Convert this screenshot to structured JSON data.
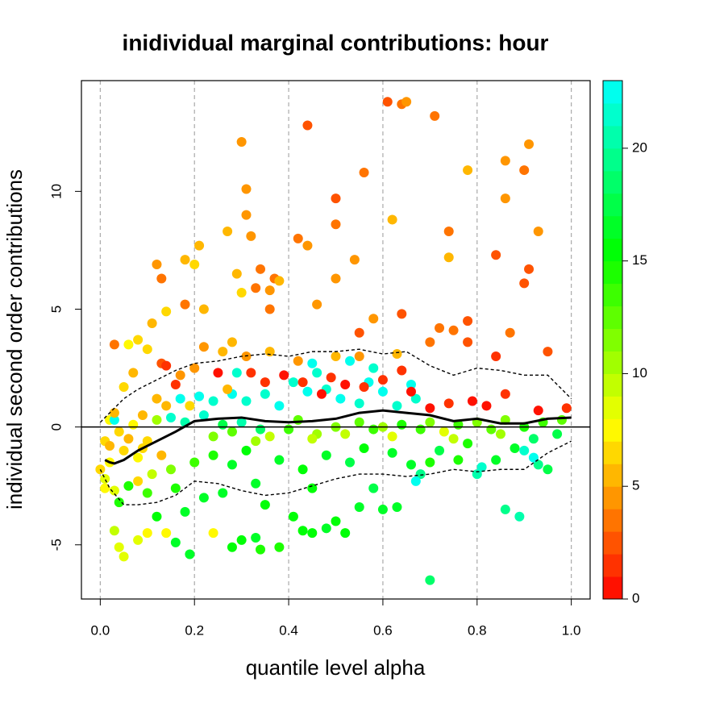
{
  "chart_data": {
    "type": "scatter",
    "title": "inidividual marginal contributions: hour",
    "x_label": "quantile level alpha",
    "y_label": "individual second order contributions",
    "xlim": [
      -0.04,
      1.04
    ],
    "ylim": [
      -7.3,
      14.7
    ],
    "xticks": [
      {
        "value": 0,
        "label": "0.0"
      },
      0.2,
      0.4,
      0.6,
      0.8,
      {
        "value": 1,
        "label": "1.0"
      }
    ],
    "yticks": [
      -5,
      0,
      5,
      10
    ],
    "grid": true,
    "reference_line": 0,
    "hue_range": [
      0,
      180
    ],
    "colorbar": {
      "zlim": [
        0,
        23
      ],
      "ticks": [
        0,
        5,
        10,
        15,
        20
      ]
    },
    "points": [
      [
        0.64,
        13.7,
        3
      ],
      [
        0.65,
        13.8,
        4
      ],
      [
        0.61,
        13.8,
        2
      ],
      [
        0.44,
        12.8,
        2
      ],
      [
        0.71,
        13.2,
        3
      ],
      [
        0.3,
        12.1,
        4
      ],
      [
        0.91,
        12.0,
        4
      ],
      [
        0.78,
        10.9,
        5
      ],
      [
        0.86,
        11.3,
        4
      ],
      [
        0.9,
        10.9,
        3
      ],
      [
        0.31,
        10.1,
        4
      ],
      [
        0.56,
        10.8,
        3
      ],
      [
        0.5,
        9.7,
        2
      ],
      [
        0.86,
        9.7,
        4
      ],
      [
        0.31,
        9.0,
        4
      ],
      [
        0.62,
        8.8,
        5
      ],
      [
        0.5,
        8.6,
        3
      ],
      [
        0.27,
        8.3,
        5
      ],
      [
        0.32,
        8.1,
        4
      ],
      [
        0.93,
        8.3,
        4
      ],
      [
        0.42,
        8.0,
        3
      ],
      [
        0.74,
        8.3,
        3
      ],
      [
        0.44,
        7.7,
        4
      ],
      [
        0.21,
        7.7,
        5
      ],
      [
        0.18,
        7.1,
        5
      ],
      [
        0.84,
        7.3,
        2
      ],
      [
        0.54,
        7.1,
        4
      ],
      [
        0.2,
        6.9,
        6
      ],
      [
        0.12,
        6.9,
        4
      ],
      [
        0.74,
        7.2,
        5
      ],
      [
        0.91,
        6.7,
        2
      ],
      [
        0.13,
        6.3,
        3
      ],
      [
        0.29,
        6.5,
        5
      ],
      [
        0.34,
        6.7,
        3
      ],
      [
        0.37,
        6.3,
        3
      ],
      [
        0.5,
        6.3,
        4
      ],
      [
        0.9,
        6.1,
        2
      ],
      [
        0.38,
        6.2,
        5
      ],
      [
        0.36,
        5.8,
        4
      ],
      [
        0.33,
        5.9,
        3
      ],
      [
        0.3,
        5.7,
        6
      ],
      [
        0.18,
        5.2,
        3
      ],
      [
        0.22,
        5.0,
        5
      ],
      [
        0.36,
        5.0,
        3
      ],
      [
        0.46,
        5.2,
        4
      ],
      [
        0.64,
        4.8,
        2
      ],
      [
        0.75,
        4.1,
        3
      ],
      [
        0.78,
        4.5,
        2
      ],
      [
        0.72,
        4.2,
        3
      ],
      [
        0.58,
        4.6,
        4
      ],
      [
        0.87,
        4.0,
        3
      ],
      [
        0.78,
        3.6,
        2
      ],
      [
        0.55,
        4.0,
        2
      ],
      [
        0.11,
        4.4,
        5
      ],
      [
        0.14,
        4.9,
        6
      ],
      [
        0.06,
        3.5,
        7
      ],
      [
        0.03,
        3.5,
        3
      ],
      [
        0.95,
        3.2,
        2
      ],
      [
        0.84,
        3.0,
        1
      ],
      [
        0.99,
        0.8,
        1
      ],
      [
        0.13,
        2.7,
        2
      ],
      [
        0.2,
        2.5,
        4
      ],
      [
        0.26,
        3.2,
        5
      ],
      [
        0.28,
        3.6,
        5
      ],
      [
        0.7,
        -6.5,
        18
      ],
      [
        0.19,
        -5.4,
        16
      ],
      [
        0.05,
        -5.5,
        8
      ],
      [
        0.04,
        -5.1,
        8
      ],
      [
        0.34,
        -5.2,
        14
      ],
      [
        0.38,
        -5.1,
        14
      ],
      [
        0.3,
        -4.8,
        15
      ],
      [
        0.28,
        -5.1,
        15
      ],
      [
        0.33,
        -4.7,
        16
      ],
      [
        0.16,
        -4.9,
        16
      ],
      [
        0.03,
        -4.4,
        9
      ],
      [
        0.08,
        -4.8,
        8
      ],
      [
        0.1,
        -4.5,
        7
      ],
      [
        0.43,
        -4.4,
        15
      ],
      [
        0.45,
        -4.5,
        15
      ],
      [
        0.48,
        -4.3,
        16
      ],
      [
        0.86,
        -3.5,
        19
      ],
      [
        0.89,
        -3.8,
        20
      ],
      [
        0.24,
        -4.5,
        7
      ],
      [
        0.14,
        -4.5,
        7
      ],
      [
        0.52,
        -4.5,
        15
      ],
      [
        0.5,
        -4.0,
        15
      ],
      [
        0.55,
        -3.4,
        16
      ],
      [
        0.6,
        -3.5,
        16
      ],
      [
        0.63,
        -3.4,
        16
      ],
      [
        0.41,
        -3.8,
        15
      ],
      [
        0.12,
        -3.8,
        15
      ],
      [
        0.18,
        -3.6,
        16
      ],
      [
        0.22,
        -3.0,
        16
      ],
      [
        0.35,
        -3.3,
        15
      ],
      [
        0.04,
        -3.2,
        14
      ],
      [
        0.06,
        -2.5,
        14
      ],
      [
        0.1,
        -2.8,
        13
      ],
      [
        0.16,
        -2.6,
        14
      ],
      [
        0.26,
        -2.8,
        16
      ],
      [
        0.33,
        -2.4,
        16
      ],
      [
        0.45,
        -2.6,
        15
      ],
      [
        0.58,
        -2.6,
        17
      ],
      [
        0.68,
        -2.0,
        19
      ],
      [
        0.7,
        -1.5,
        14
      ],
      [
        0.76,
        -1.4,
        14
      ],
      [
        0.8,
        -2.0,
        20
      ],
      [
        0.84,
        -1.4,
        16
      ],
      [
        0.93,
        -1.6,
        19
      ],
      [
        0.95,
        -1.8,
        17
      ],
      [
        0.01,
        -2.2,
        8
      ],
      [
        0.02,
        -1.5,
        7
      ],
      [
        0.01,
        -0.6,
        6
      ],
      [
        0.03,
        -2.7,
        8
      ],
      [
        0.05,
        -1.0,
        6
      ],
      [
        0.08,
        -1.3,
        7
      ],
      [
        0.09,
        -0.9,
        6
      ],
      [
        0.11,
        -2.0,
        9
      ],
      [
        0.15,
        -1.8,
        11
      ],
      [
        0.2,
        -1.5,
        13
      ],
      [
        0.24,
        -1.2,
        14
      ],
      [
        0.28,
        -1.6,
        16
      ],
      [
        0.31,
        -1.0,
        15
      ],
      [
        0.38,
        -1.4,
        16
      ],
      [
        0.43,
        -1.8,
        15
      ],
      [
        0.48,
        -1.2,
        16
      ],
      [
        0.53,
        -1.5,
        17
      ],
      [
        0.56,
        -0.9,
        15
      ],
      [
        0.62,
        -1.1,
        16
      ],
      [
        0.66,
        -1.6,
        16
      ],
      [
        0.72,
        -1.0,
        17
      ],
      [
        0.78,
        -0.7,
        14
      ],
      [
        0.88,
        -0.9,
        16
      ],
      [
        0.92,
        -0.5,
        18
      ],
      [
        0.97,
        -0.3,
        17
      ],
      [
        0.02,
        0.3,
        7
      ],
      [
        0.04,
        -0.2,
        6
      ],
      [
        0.07,
        0.1,
        7
      ],
      [
        0.12,
        0.3,
        10
      ],
      [
        0.15,
        0.4,
        21
      ],
      [
        0.18,
        0.2,
        20
      ],
      [
        0.22,
        0.5,
        21
      ],
      [
        0.26,
        0.1,
        17
      ],
      [
        0.3,
        0.2,
        20
      ],
      [
        0.34,
        -0.1,
        18
      ],
      [
        0.36,
        -0.4,
        9
      ],
      [
        0.4,
        -0.1,
        13
      ],
      [
        0.42,
        0.3,
        12
      ],
      [
        0.46,
        -0.3,
        10
      ],
      [
        0.5,
        0.0,
        11
      ],
      [
        0.52,
        -0.3,
        9
      ],
      [
        0.55,
        0.2,
        12
      ],
      [
        0.58,
        -0.1,
        13
      ],
      [
        0.6,
        0.0,
        10
      ],
      [
        0.64,
        0.1,
        14
      ],
      [
        0.68,
        -0.1,
        13
      ],
      [
        0.7,
        0.2,
        11
      ],
      [
        0.73,
        -0.2,
        8
      ],
      [
        0.76,
        0.1,
        13
      ],
      [
        0.8,
        0.2,
        11
      ],
      [
        0.83,
        -0.1,
        12
      ],
      [
        0.86,
        0.3,
        11
      ],
      [
        0.9,
        0.0,
        14
      ],
      [
        0.94,
        0.2,
        13
      ],
      [
        0.98,
        0.3,
        12
      ],
      [
        0.24,
        -0.4,
        11
      ],
      [
        0.28,
        -0.2,
        12
      ],
      [
        0.33,
        -0.6,
        10
      ],
      [
        0.45,
        -0.5,
        9
      ],
      [
        0.62,
        -0.4,
        8
      ],
      [
        0.75,
        -0.5,
        9
      ],
      [
        0.85,
        -0.3,
        10
      ],
      [
        0.21,
        1.3,
        22
      ],
      [
        0.24,
        1.1,
        21
      ],
      [
        0.28,
        1.4,
        22
      ],
      [
        0.31,
        1.1,
        21
      ],
      [
        0.35,
        1.4,
        21
      ],
      [
        0.38,
        0.9,
        22
      ],
      [
        0.41,
        1.9,
        21
      ],
      [
        0.44,
        1.5,
        22
      ],
      [
        0.45,
        2.7,
        22
      ],
      [
        0.48,
        1.6,
        21
      ],
      [
        0.51,
        1.2,
        22
      ],
      [
        0.55,
        1.0,
        21
      ],
      [
        0.57,
        1.9,
        22
      ],
      [
        0.6,
        1.5,
        22
      ],
      [
        0.63,
        0.9,
        21
      ],
      [
        0.67,
        1.2,
        21
      ],
      [
        0.29,
        2.3,
        21
      ],
      [
        0.46,
        2.3,
        21
      ],
      [
        0.53,
        2.8,
        22
      ],
      [
        0.58,
        2.5,
        21
      ],
      [
        0.66,
        1.8,
        22
      ],
      [
        0.17,
        1.2,
        22
      ],
      [
        0.03,
        0.3,
        22
      ],
      [
        0.9,
        -1.0,
        21
      ],
      [
        0.92,
        -1.3,
        22
      ],
      [
        0.67,
        -2.3,
        22
      ],
      [
        0.81,
        -1.7,
        21
      ],
      [
        0.25,
        2.3,
        0
      ],
      [
        0.32,
        2.3,
        1
      ],
      [
        0.35,
        1.9,
        1
      ],
      [
        0.39,
        2.2,
        0
      ],
      [
        0.43,
        1.9,
        1
      ],
      [
        0.47,
        1.4,
        0
      ],
      [
        0.49,
        2.1,
        1
      ],
      [
        0.52,
        1.8,
        0
      ],
      [
        0.56,
        1.7,
        1
      ],
      [
        0.6,
        2.0,
        1
      ],
      [
        0.64,
        2.4,
        1
      ],
      [
        0.66,
        1.5,
        0
      ],
      [
        0.7,
        0.8,
        0
      ],
      [
        0.74,
        1.0,
        1
      ],
      [
        0.79,
        1.1,
        0
      ],
      [
        0.82,
        0.9,
        0
      ],
      [
        0.86,
        1.4,
        1
      ],
      [
        0.93,
        0.7,
        0
      ],
      [
        0.16,
        1.8,
        1
      ],
      [
        0.14,
        2.6,
        1
      ],
      [
        0.0,
        -1.8,
        6
      ],
      [
        0.02,
        -0.8,
        5
      ],
      [
        0.03,
        0.6,
        5
      ],
      [
        0.05,
        1.7,
        6
      ],
      [
        0.07,
        2.3,
        5
      ],
      [
        0.09,
        0.5,
        5
      ],
      [
        0.1,
        -0.6,
        6
      ],
      [
        0.12,
        1.2,
        5
      ],
      [
        0.13,
        -1.2,
        5
      ],
      [
        0.06,
        -0.5,
        5
      ],
      [
        0.08,
        -2.3,
        6
      ],
      [
        0.01,
        -2.6,
        7
      ],
      [
        0.14,
        0.9,
        5
      ],
      [
        0.19,
        0.9,
        6
      ],
      [
        0.17,
        2.2,
        4
      ],
      [
        0.22,
        3.4,
        4
      ],
      [
        0.27,
        1.6,
        5
      ],
      [
        0.31,
        3.0,
        4
      ],
      [
        0.36,
        3.2,
        5
      ],
      [
        0.42,
        2.8,
        4
      ],
      [
        0.5,
        3.0,
        5
      ],
      [
        0.55,
        3.0,
        4
      ],
      [
        0.63,
        3.1,
        5
      ],
      [
        0.7,
        3.6,
        3
      ],
      [
        0.1,
        3.3,
        6
      ],
      [
        0.08,
        3.7,
        6
      ]
    ],
    "lines": [
      {
        "style": "solid",
        "color": "#000000",
        "x": [
          0.01,
          0.02,
          0.03,
          0.05,
          0.08,
          0.12,
          0.16,
          0.2,
          0.25,
          0.3,
          0.35,
          0.4,
          0.45,
          0.5,
          0.55,
          0.6,
          0.65,
          0.7,
          0.75,
          0.8,
          0.85,
          0.9,
          0.95,
          1.0
        ],
        "values": [
          -1.4,
          -1.5,
          -1.55,
          -1.4,
          -1.0,
          -0.6,
          -0.2,
          0.25,
          0.35,
          0.4,
          0.25,
          0.2,
          0.25,
          0.35,
          0.6,
          0.7,
          0.6,
          0.5,
          0.25,
          0.35,
          0.15,
          0.15,
          0.35,
          0.4
        ]
      },
      {
        "style": "dashed",
        "color": "#000000",
        "x": [
          0.0,
          0.02,
          0.05,
          0.08,
          0.12,
          0.16,
          0.2,
          0.25,
          0.3,
          0.35,
          0.4,
          0.45,
          0.5,
          0.55,
          0.6,
          0.65,
          0.7,
          0.75,
          0.8,
          0.85,
          0.9,
          0.95,
          1.0
        ],
        "values": [
          0.2,
          0.6,
          1.2,
          1.6,
          2.0,
          2.4,
          2.7,
          2.8,
          3.0,
          3.1,
          3.0,
          3.2,
          3.2,
          3.3,
          3.1,
          3.2,
          2.6,
          2.2,
          2.5,
          2.4,
          2.2,
          2.2,
          1.2
        ]
      },
      {
        "style": "dashed",
        "color": "#000000",
        "x": [
          0.0,
          0.02,
          0.05,
          0.08,
          0.12,
          0.16,
          0.2,
          0.25,
          0.3,
          0.35,
          0.4,
          0.45,
          0.5,
          0.55,
          0.6,
          0.65,
          0.7,
          0.75,
          0.8,
          0.85,
          0.9,
          0.95,
          1.0
        ],
        "values": [
          -1.8,
          -2.6,
          -3.3,
          -3.3,
          -3.2,
          -2.9,
          -2.3,
          -2.4,
          -2.7,
          -2.9,
          -2.8,
          -2.5,
          -2.2,
          -2.0,
          -2.0,
          -2.1,
          -2.0,
          -1.8,
          -1.9,
          -1.8,
          -1.8,
          -1.1,
          -0.6
        ]
      }
    ]
  }
}
